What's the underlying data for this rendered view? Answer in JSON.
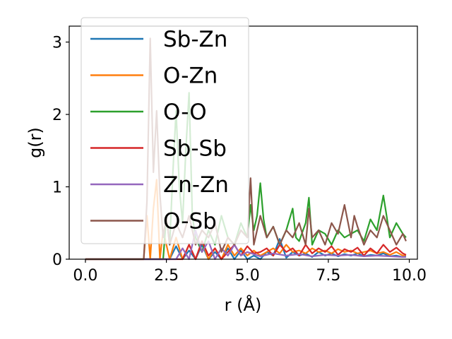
{
  "chart_data": {
    "type": "line",
    "xlabel": "r (Å)",
    "ylabel": "g(r)",
    "xlim": [
      -0.5,
      10.25
    ],
    "ylim": [
      0,
      3.22
    ],
    "xticks": [
      0.0,
      2.5,
      5.0,
      7.5,
      10.0
    ],
    "xtick_labels": [
      "0.0",
      "2.5",
      "5.0",
      "7.5",
      "10.0"
    ],
    "yticks": [
      0,
      1,
      2,
      3
    ],
    "ytick_labels": [
      "0",
      "1",
      "2",
      "3"
    ],
    "grid": false,
    "legend_position": "top-left",
    "series": [
      {
        "name": "Sb-Zn",
        "color": "#1f77b4",
        "x": [
          0,
          1.0,
          2.0,
          2.2,
          2.4,
          2.6,
          2.8,
          3.0,
          3.2,
          3.4,
          3.6,
          3.8,
          4.0,
          4.2,
          4.4,
          4.6,
          4.8,
          5.0,
          5.2,
          5.4,
          5.6,
          5.8,
          6.0,
          6.2,
          6.4,
          6.6,
          6.8,
          7.0,
          7.2,
          7.4,
          7.6,
          7.8,
          8.0,
          8.2,
          8.4,
          8.6,
          8.8,
          9.0,
          9.2,
          9.4,
          9.6,
          9.8,
          9.9
        ],
        "y": [
          0,
          0,
          0,
          0,
          0,
          0,
          0.18,
          0,
          0.12,
          0,
          0.2,
          0,
          0.1,
          0,
          0.15,
          0,
          0.12,
          0,
          0.05,
          0,
          0.1,
          0.05,
          0.28,
          0.02,
          0.1,
          0.05,
          0.08,
          0.03,
          0.1,
          0.05,
          0.08,
          0.04,
          0.07,
          0.05,
          0.08,
          0.04,
          0.06,
          0.05,
          0.08,
          0.04,
          0.05,
          0.03,
          0.04
        ]
      },
      {
        "name": "O-Zn",
        "color": "#ff7f0e",
        "x": [
          0,
          1.0,
          1.8,
          1.9,
          2.0,
          2.1,
          2.2,
          2.3,
          2.4,
          2.6,
          2.8,
          3.0,
          3.2,
          3.4,
          3.6,
          3.8,
          4.0,
          4.2,
          4.4,
          4.6,
          4.8,
          5.0,
          5.2,
          5.4,
          5.6,
          5.8,
          6.0,
          6.2,
          6.4,
          6.6,
          6.8,
          7.0,
          7.2,
          7.4,
          7.6,
          7.8,
          8.0,
          8.2,
          8.4,
          8.6,
          8.8,
          9.0,
          9.2,
          9.4,
          9.6,
          9.8,
          9.9
        ],
        "y": [
          0,
          0,
          0,
          0.6,
          0,
          0.7,
          1.1,
          0,
          0.4,
          0,
          0.3,
          0,
          0.2,
          0,
          0.25,
          0,
          0.15,
          0,
          0.2,
          0.05,
          0.15,
          0.05,
          0.12,
          0.05,
          0.1,
          0.15,
          0.08,
          0.2,
          0.1,
          0.12,
          0.08,
          0.15,
          0.1,
          0.12,
          0.08,
          0.14,
          0.1,
          0.12,
          0.08,
          0.1,
          0.12,
          0.08,
          0.1,
          0.06,
          0.1,
          0.05,
          0.06
        ]
      },
      {
        "name": "O-O",
        "color": "#2ca02c",
        "x": [
          0,
          1.0,
          2.4,
          2.5,
          2.6,
          2.7,
          2.8,
          2.9,
          3.0,
          3.1,
          3.2,
          3.3,
          3.4,
          3.6,
          3.8,
          4.0,
          4.2,
          4.4,
          4.6,
          4.8,
          5.0,
          5.1,
          5.2,
          5.3,
          5.4,
          5.5,
          5.6,
          5.8,
          6.0,
          6.2,
          6.4,
          6.5,
          6.6,
          6.8,
          6.9,
          7.0,
          7.2,
          7.4,
          7.6,
          7.8,
          8.0,
          8.2,
          8.4,
          8.6,
          8.8,
          9.0,
          9.2,
          9.3,
          9.4,
          9.6,
          9.8,
          9.9
        ],
        "y": [
          0,
          0,
          0,
          0.6,
          0.2,
          1.2,
          2.05,
          1.0,
          0.5,
          1.5,
          2.3,
          0.6,
          0.3,
          0.1,
          0.4,
          0.2,
          0.6,
          0.3,
          0.2,
          0.5,
          0.3,
          0.75,
          0.4,
          0.6,
          1.05,
          0.55,
          0.3,
          0.45,
          0.2,
          0.4,
          0.7,
          0.3,
          0.25,
          0.5,
          0.85,
          0.2,
          0.4,
          0.35,
          0.2,
          0.4,
          0.3,
          0.35,
          0.4,
          0.25,
          0.55,
          0.4,
          0.88,
          0.6,
          0.3,
          0.5,
          0.35,
          0.3
        ]
      },
      {
        "name": "Sb-Sb",
        "color": "#d62728",
        "x": [
          0,
          1.0,
          3.0,
          3.2,
          3.4,
          3.6,
          3.8,
          4.0,
          4.2,
          4.4,
          4.6,
          4.8,
          5.0,
          5.2,
          5.4,
          5.6,
          5.8,
          6.0,
          6.2,
          6.4,
          6.6,
          6.8,
          7.0,
          7.2,
          7.4,
          7.6,
          7.8,
          8.0,
          8.2,
          8.4,
          8.6,
          8.8,
          9.0,
          9.2,
          9.4,
          9.6,
          9.8,
          9.9
        ],
        "y": [
          0,
          0,
          0,
          0.2,
          0,
          0.25,
          0.05,
          0.15,
          0,
          0.1,
          0.2,
          0.05,
          0.18,
          0.08,
          0.1,
          0.15,
          0.05,
          0.2,
          0.1,
          0.15,
          0.05,
          0.2,
          0.08,
          0.15,
          0.1,
          0.18,
          0.06,
          0.14,
          0.1,
          0.16,
          0.05,
          0.15,
          0.08,
          0.2,
          0.1,
          0.16,
          0.08,
          0.06
        ]
      },
      {
        "name": "Zn-Zn",
        "color": "#9467bd",
        "x": [
          0,
          1.0,
          2.8,
          3.0,
          3.2,
          3.4,
          3.6,
          3.8,
          4.0,
          4.2,
          4.4,
          4.6,
          4.8,
          5.0,
          5.4,
          5.8,
          6.2,
          6.6,
          7.0,
          7.4,
          7.8,
          8.2,
          8.6,
          9.0,
          9.4,
          9.8,
          9.9
        ],
        "y": [
          0,
          0,
          0,
          0.15,
          0,
          0.4,
          0.1,
          0.25,
          0,
          0.15,
          0.05,
          0.2,
          0.05,
          0.1,
          0.04,
          0.08,
          0.05,
          0.07,
          0.04,
          0.06,
          0.05,
          0.06,
          0.04,
          0.05,
          0.04,
          0.03,
          0.03
        ]
      },
      {
        "name": "O-Sb",
        "color": "#8c564b",
        "x": [
          0,
          1.0,
          1.8,
          1.9,
          2.0,
          2.1,
          2.2,
          2.3,
          2.4,
          2.5,
          2.6,
          2.8,
          3.0,
          3.2,
          3.4,
          3.6,
          3.8,
          4.0,
          4.2,
          4.4,
          4.6,
          4.8,
          5.0,
          5.1,
          5.2,
          5.4,
          5.6,
          5.8,
          6.0,
          6.2,
          6.4,
          6.6,
          6.8,
          6.9,
          7.0,
          7.2,
          7.4,
          7.6,
          7.8,
          8.0,
          8.2,
          8.3,
          8.4,
          8.6,
          8.8,
          9.0,
          9.2,
          9.4,
          9.6,
          9.8,
          9.9
        ],
        "y": [
          0,
          0,
          0,
          0.8,
          3.05,
          1.2,
          2.05,
          0.9,
          0.3,
          0.6,
          0.2,
          0.5,
          0.3,
          0.6,
          0.2,
          0.4,
          0.3,
          0.5,
          0.1,
          0.3,
          0.2,
          0.4,
          0.3,
          1.12,
          0.2,
          0.6,
          0.3,
          0.45,
          0.2,
          0.4,
          0.3,
          0.5,
          0.2,
          0.7,
          0.3,
          0.4,
          0.2,
          0.5,
          0.35,
          0.75,
          0.3,
          0.6,
          0.45,
          0.2,
          0.4,
          0.3,
          0.6,
          0.4,
          0.2,
          0.35,
          0.25
        ]
      }
    ]
  }
}
